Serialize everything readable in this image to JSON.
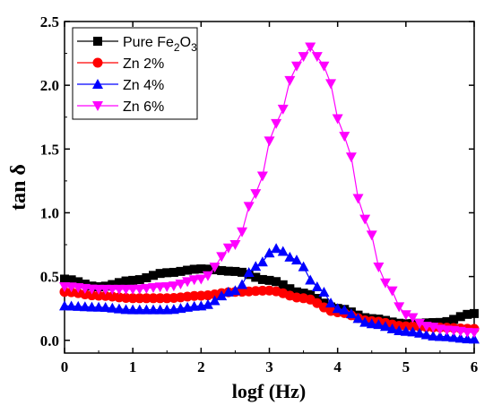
{
  "chart_data": {
    "type": "line",
    "xlabel": "logf (Hz)",
    "ylabel": "tan δ",
    "xlim": [
      0,
      6
    ],
    "ylim": [
      -0.1,
      2.5
    ],
    "xticks": [
      "0",
      "1",
      "2",
      "3",
      "4",
      "5",
      "6"
    ],
    "yticks": [
      "0.0",
      "0.5",
      "1.0",
      "1.5",
      "2.0",
      "2.5"
    ],
    "grid": false,
    "legend_position": "top-left",
    "series": [
      {
        "name": "Pure Fe2O3",
        "legend": {
          "prefix": "Pure Fe",
          "sub1": "2",
          "mid": "O",
          "sub2": "3"
        },
        "color": "#000000",
        "marker": "square",
        "x": [
          0,
          0.5,
          1,
          1.5,
          2,
          2.5,
          3,
          3.5,
          4,
          4.5,
          5,
          5.5,
          6
        ],
        "y": [
          0.48,
          0.42,
          0.47,
          0.53,
          0.56,
          0.54,
          0.47,
          0.37,
          0.25,
          0.17,
          0.13,
          0.14,
          0.21
        ]
      },
      {
        "name": "Zn 2%",
        "color": "#ff0000",
        "marker": "circle",
        "x": [
          0,
          0.5,
          1,
          1.5,
          2,
          2.5,
          3,
          3.5,
          4,
          4.5,
          5,
          5.5,
          6
        ],
        "y": [
          0.38,
          0.35,
          0.33,
          0.33,
          0.35,
          0.38,
          0.39,
          0.33,
          0.22,
          0.15,
          0.11,
          0.1,
          0.09
        ]
      },
      {
        "name": "Zn 4%",
        "color": "#0000ff",
        "marker": "triangle-up",
        "x": [
          0,
          0.5,
          1,
          1.5,
          2,
          2.5,
          2.8,
          3.1,
          3.4,
          3.7,
          4,
          4.5,
          5,
          5.5,
          6
        ],
        "y": [
          0.27,
          0.26,
          0.24,
          0.24,
          0.27,
          0.39,
          0.58,
          0.72,
          0.63,
          0.42,
          0.25,
          0.13,
          0.07,
          0.03,
          0.01
        ]
      },
      {
        "name": "Zn 6%",
        "color": "#ff00ff",
        "marker": "triangle-down",
        "x": [
          0,
          0.5,
          1,
          1.5,
          2,
          2.5,
          2.8,
          3.1,
          3.4,
          3.6,
          3.8,
          4.1,
          4.4,
          4.7,
          5,
          5.3,
          5.6,
          6
        ],
        "y": [
          0.42,
          0.4,
          0.4,
          0.42,
          0.48,
          0.75,
          1.15,
          1.7,
          2.15,
          2.3,
          2.15,
          1.6,
          0.95,
          0.45,
          0.2,
          0.11,
          0.08,
          0.06
        ]
      }
    ]
  }
}
